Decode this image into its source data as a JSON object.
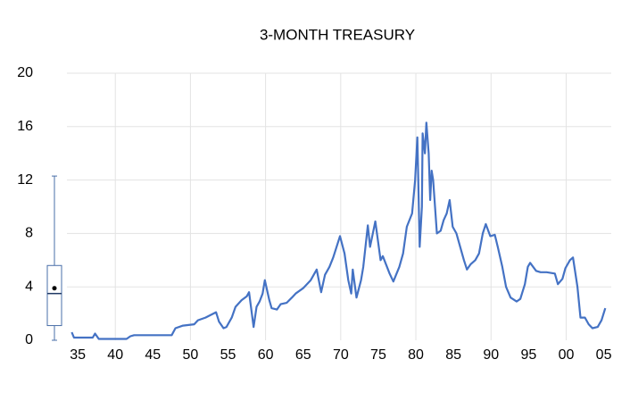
{
  "chart_data": {
    "type": "line",
    "title": "3-MONTH TREASURY",
    "x": [
      1934.2,
      1934.5,
      1937.0,
      1937.3,
      1937.8,
      1938.5,
      1941.5,
      1942.0,
      1942.5,
      1947.5,
      1948.0,
      1949.0,
      1950.5,
      1951.0,
      1952.0,
      1953.4,
      1953.8,
      1954.4,
      1954.8,
      1955.5,
      1956.0,
      1956.8,
      1957.5,
      1957.8,
      1958.4,
      1958.8,
      1959.2,
      1959.6,
      1959.9,
      1960.5,
      1960.8,
      1961.5,
      1962.0,
      1962.8,
      1963.5,
      1964.0,
      1965.0,
      1966.0,
      1966.8,
      1967.4,
      1967.9,
      1968.5,
      1969.0,
      1969.9,
      1970.5,
      1971.0,
      1971.4,
      1971.6,
      1972.1,
      1972.7,
      1973.0,
      1973.6,
      1973.9,
      1974.6,
      1975.3,
      1975.6,
      1976.5,
      1977.0,
      1977.8,
      1978.3,
      1978.8,
      1979.5,
      1979.9,
      1980.2,
      1980.5,
      1980.8,
      1980.9,
      1981.2,
      1981.4,
      1981.7,
      1981.9,
      1982.1,
      1982.3,
      1982.8,
      1983.3,
      1983.7,
      1984.1,
      1984.5,
      1984.9,
      1985.4,
      1985.9,
      1986.4,
      1986.8,
      1987.3,
      1987.9,
      1988.4,
      1988.9,
      1989.3,
      1989.9,
      1990.5,
      1990.9,
      1991.5,
      1992.0,
      1992.6,
      1993.4,
      1993.9,
      1994.5,
      1994.9,
      1995.2,
      1996.0,
      1996.6,
      1997.4,
      1998.5,
      1998.9,
      1999.5,
      1999.9,
      2000.5,
      2000.9,
      2001.5,
      2001.9,
      2002.5,
      2003.0,
      2003.5,
      2004.2,
      2004.7,
      2005.2
    ],
    "series": [
      {
        "name": "3-MONTH TREASURY",
        "color": "#4472c4",
        "values": [
          0.6,
          0.2,
          0.2,
          0.5,
          0.1,
          0.1,
          0.1,
          0.3,
          0.38,
          0.38,
          0.9,
          1.1,
          1.2,
          1.5,
          1.7,
          2.1,
          1.4,
          0.9,
          1.0,
          1.7,
          2.5,
          3.0,
          3.3,
          3.6,
          1.0,
          2.5,
          2.9,
          3.5,
          4.5,
          3.0,
          2.4,
          2.3,
          2.7,
          2.8,
          3.2,
          3.5,
          3.9,
          4.5,
          5.3,
          3.6,
          4.9,
          5.5,
          6.2,
          7.8,
          6.5,
          4.5,
          3.5,
          5.3,
          3.2,
          4.5,
          5.5,
          8.6,
          7.0,
          8.9,
          6.0,
          6.3,
          5.0,
          4.4,
          5.5,
          6.5,
          8.5,
          9.5,
          12.0,
          15.2,
          7.0,
          10.0,
          15.5,
          14.0,
          16.3,
          14.0,
          10.5,
          12.7,
          12.0,
          8.0,
          8.2,
          9.0,
          9.5,
          10.5,
          8.5,
          8.0,
          7.0,
          6.0,
          5.3,
          5.7,
          6.0,
          6.5,
          8.0,
          8.7,
          7.8,
          7.9,
          7.0,
          5.5,
          4.0,
          3.2,
          2.9,
          3.1,
          4.2,
          5.5,
          5.8,
          5.2,
          5.1,
          5.1,
          5.0,
          4.2,
          4.6,
          5.4,
          6.0,
          6.2,
          4.0,
          1.7,
          1.7,
          1.2,
          0.9,
          1.0,
          1.5,
          2.4
        ]
      }
    ],
    "box": {
      "min": 0,
      "q1": 1.1,
      "median": 3.5,
      "q3": 5.6,
      "max": 12.3,
      "mean": 3.9,
      "color": "#4a6fa8"
    },
    "xlim": [
      1930,
      2006
    ],
    "xticks": [
      {
        "value": 1935,
        "label": "35"
      },
      {
        "value": 1940,
        "label": "40"
      },
      {
        "value": 1945,
        "label": "45"
      },
      {
        "value": 1950,
        "label": "50"
      },
      {
        "value": 1955,
        "label": "55"
      },
      {
        "value": 1960,
        "label": "60"
      },
      {
        "value": 1965,
        "label": "65"
      },
      {
        "value": 1970,
        "label": "70"
      },
      {
        "value": 1975,
        "label": "75"
      },
      {
        "value": 1980,
        "label": "80"
      },
      {
        "value": 1985,
        "label": "85"
      },
      {
        "value": 1990,
        "label": "90"
      },
      {
        "value": 1995,
        "label": "95"
      },
      {
        "value": 2000,
        "label": "00"
      },
      {
        "value": 2005,
        "label": "05"
      }
    ],
    "xgrid": [
      1940,
      1950,
      1960,
      1970,
      1980,
      1990,
      2000
    ],
    "ylim": [
      0,
      20
    ],
    "yticks": [
      0,
      4,
      8,
      12,
      16,
      20
    ],
    "grid": true
  }
}
